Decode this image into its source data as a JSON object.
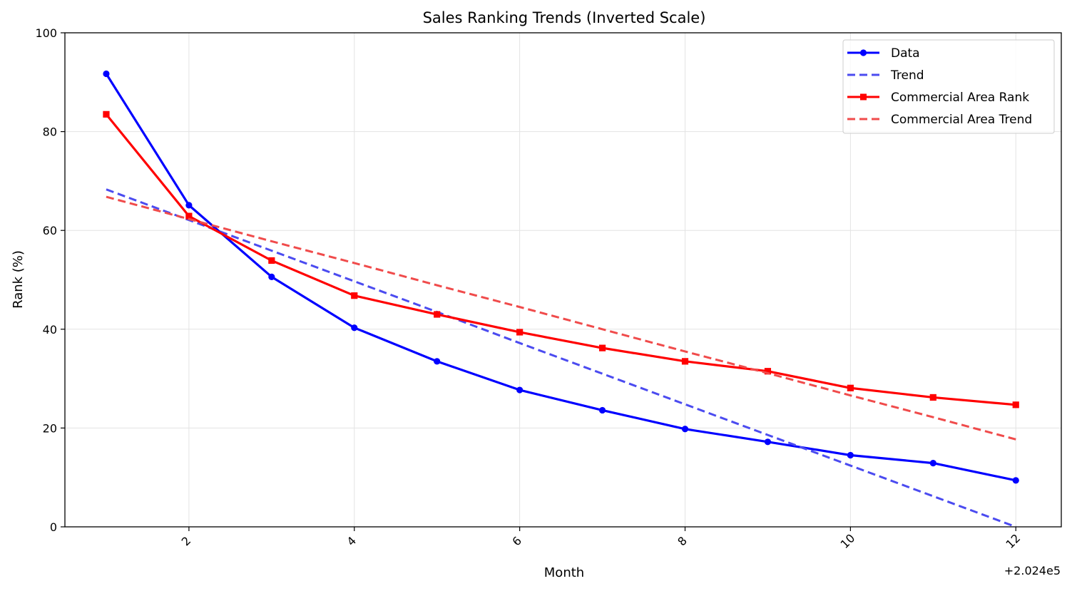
{
  "chart_data": {
    "type": "line",
    "title": "Sales Ranking Trends (Inverted Scale)",
    "xlabel": "Month",
    "ylabel": "Rank (%)",
    "x_offset_label": "+2.024e5",
    "xlim": [
      0.5,
      12.55
    ],
    "ylim": [
      0,
      100
    ],
    "x_ticks": [
      2,
      4,
      6,
      8,
      10,
      12
    ],
    "x_tick_labels": [
      "2",
      "4",
      "6",
      "8",
      "10",
      "12"
    ],
    "y_ticks": [
      0,
      20,
      40,
      60,
      80,
      100
    ],
    "y_tick_labels": [
      "0",
      "20",
      "40",
      "60",
      "80",
      "100"
    ],
    "grid": true,
    "legend_position": "top-right",
    "x": [
      1,
      2,
      3,
      4,
      5,
      6,
      7,
      8,
      9,
      10,
      11,
      12
    ],
    "series": [
      {
        "name": "Data",
        "style": "solid",
        "marker": "circle",
        "color": "#0000ff",
        "values": [
          91.7,
          65.1,
          50.6,
          40.3,
          33.5,
          27.7,
          23.6,
          19.8,
          17.2,
          14.5,
          12.9,
          9.4
        ]
      },
      {
        "name": "Trend",
        "style": "dashed",
        "marker": "none",
        "color": "#4b4bf0",
        "values": [
          68.3,
          62.1,
          55.9,
          49.7,
          43.5,
          37.2,
          31.0,
          24.8,
          18.6,
          12.4,
          6.2,
          0.0
        ]
      },
      {
        "name": "Commercial Area Rank",
        "style": "solid",
        "marker": "square",
        "color": "#ff0000",
        "values": [
          83.5,
          62.9,
          53.9,
          46.8,
          43.0,
          39.4,
          36.2,
          33.5,
          31.5,
          28.1,
          26.2,
          24.7
        ]
      },
      {
        "name": "Commercial Area Trend",
        "style": "dashed",
        "marker": "none",
        "color": "#f04b4b",
        "values": [
          66.8,
          62.3,
          57.8,
          53.4,
          48.9,
          44.5,
          40.0,
          35.5,
          31.1,
          26.6,
          22.2,
          17.7
        ]
      }
    ]
  }
}
